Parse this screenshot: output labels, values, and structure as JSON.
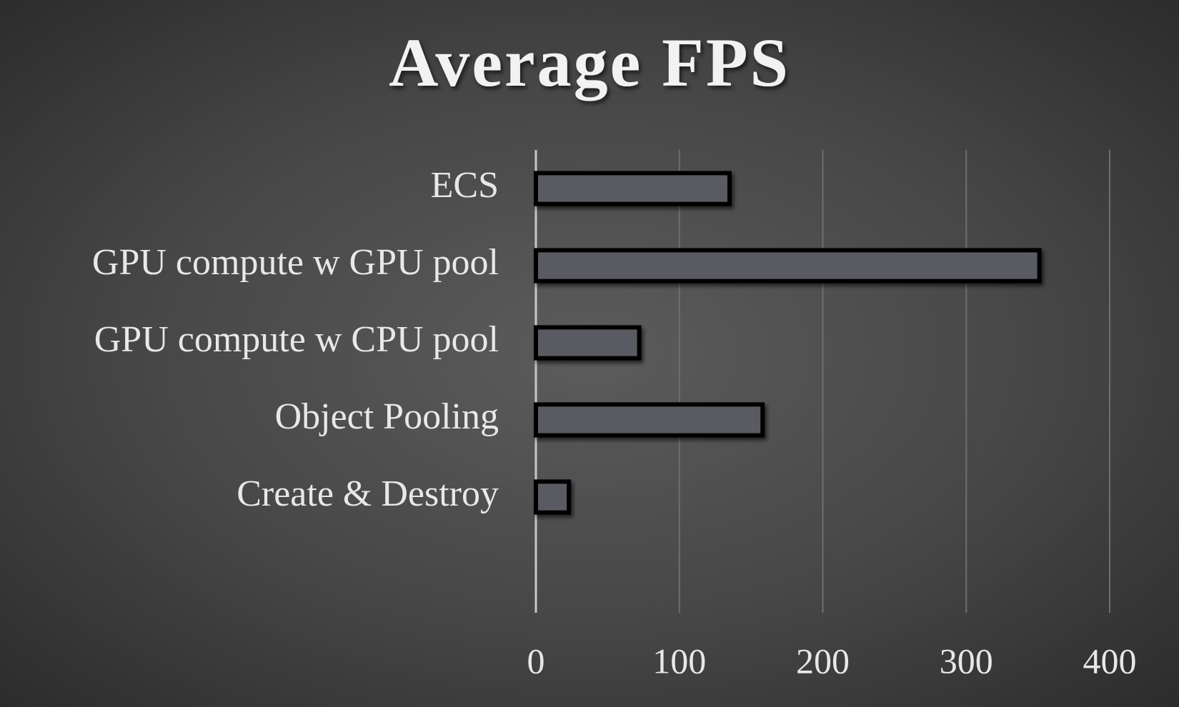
{
  "chart_data": {
    "type": "bar",
    "orientation": "horizontal",
    "title": "Average FPS",
    "categories": [
      "ECS",
      "GPU compute w GPU pool",
      "GPU compute w CPU pool",
      "Object Pooling",
      "Create & Destroy",
      null
    ],
    "values": [
      135,
      351,
      72,
      158,
      23,
      null
    ],
    "color": "#5a5a62",
    "xlim": [
      0,
      400
    ],
    "xticks": [
      0,
      100,
      200,
      300,
      400
    ],
    "grid": true
  }
}
